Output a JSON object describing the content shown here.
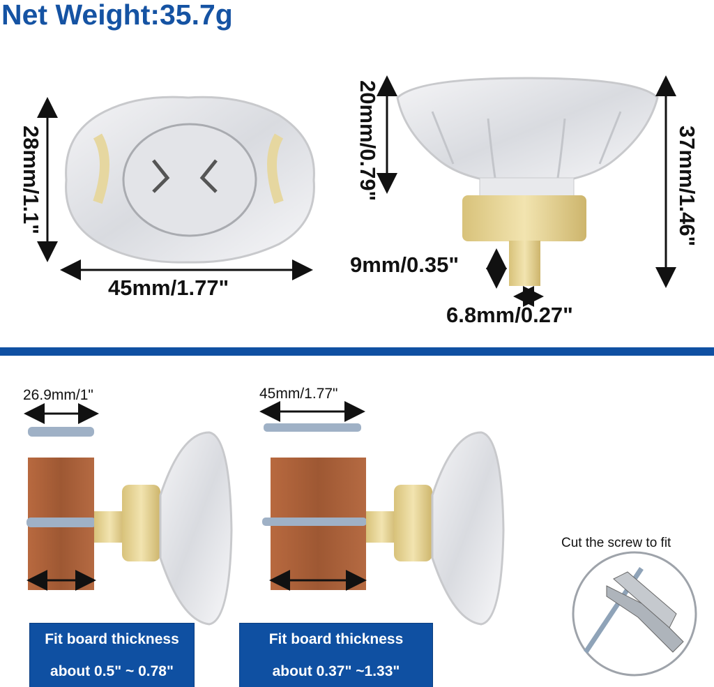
{
  "title": "Net Weight:35.7g",
  "top_view": {
    "height_label": "28mm/1.1\"",
    "width_label": "45mm/1.77\""
  },
  "side_view": {
    "cap_height_label": "20mm/0.79\"",
    "total_height_label": "37mm/1.46\"",
    "stem_length_label": "9mm/0.35\"",
    "stem_diameter_label": "6.8mm/0.27\""
  },
  "installation": [
    {
      "screw_label": "26.9mm/1\"",
      "box_line1": "Fit board thickness",
      "box_line2": "about 0.5\" ~ 0.78\""
    },
    {
      "screw_label": "45mm/1.77\"",
      "box_line1": "Fit board thickness",
      "box_line2": "about 0.37\" ~1.33\""
    }
  ],
  "cut_note": "Cut the screw to fit",
  "colors": {
    "brand_blue": "#1553a3",
    "band_blue": "#0f50a2",
    "brass": "#e3cf8a",
    "wood": "#a8603a"
  }
}
